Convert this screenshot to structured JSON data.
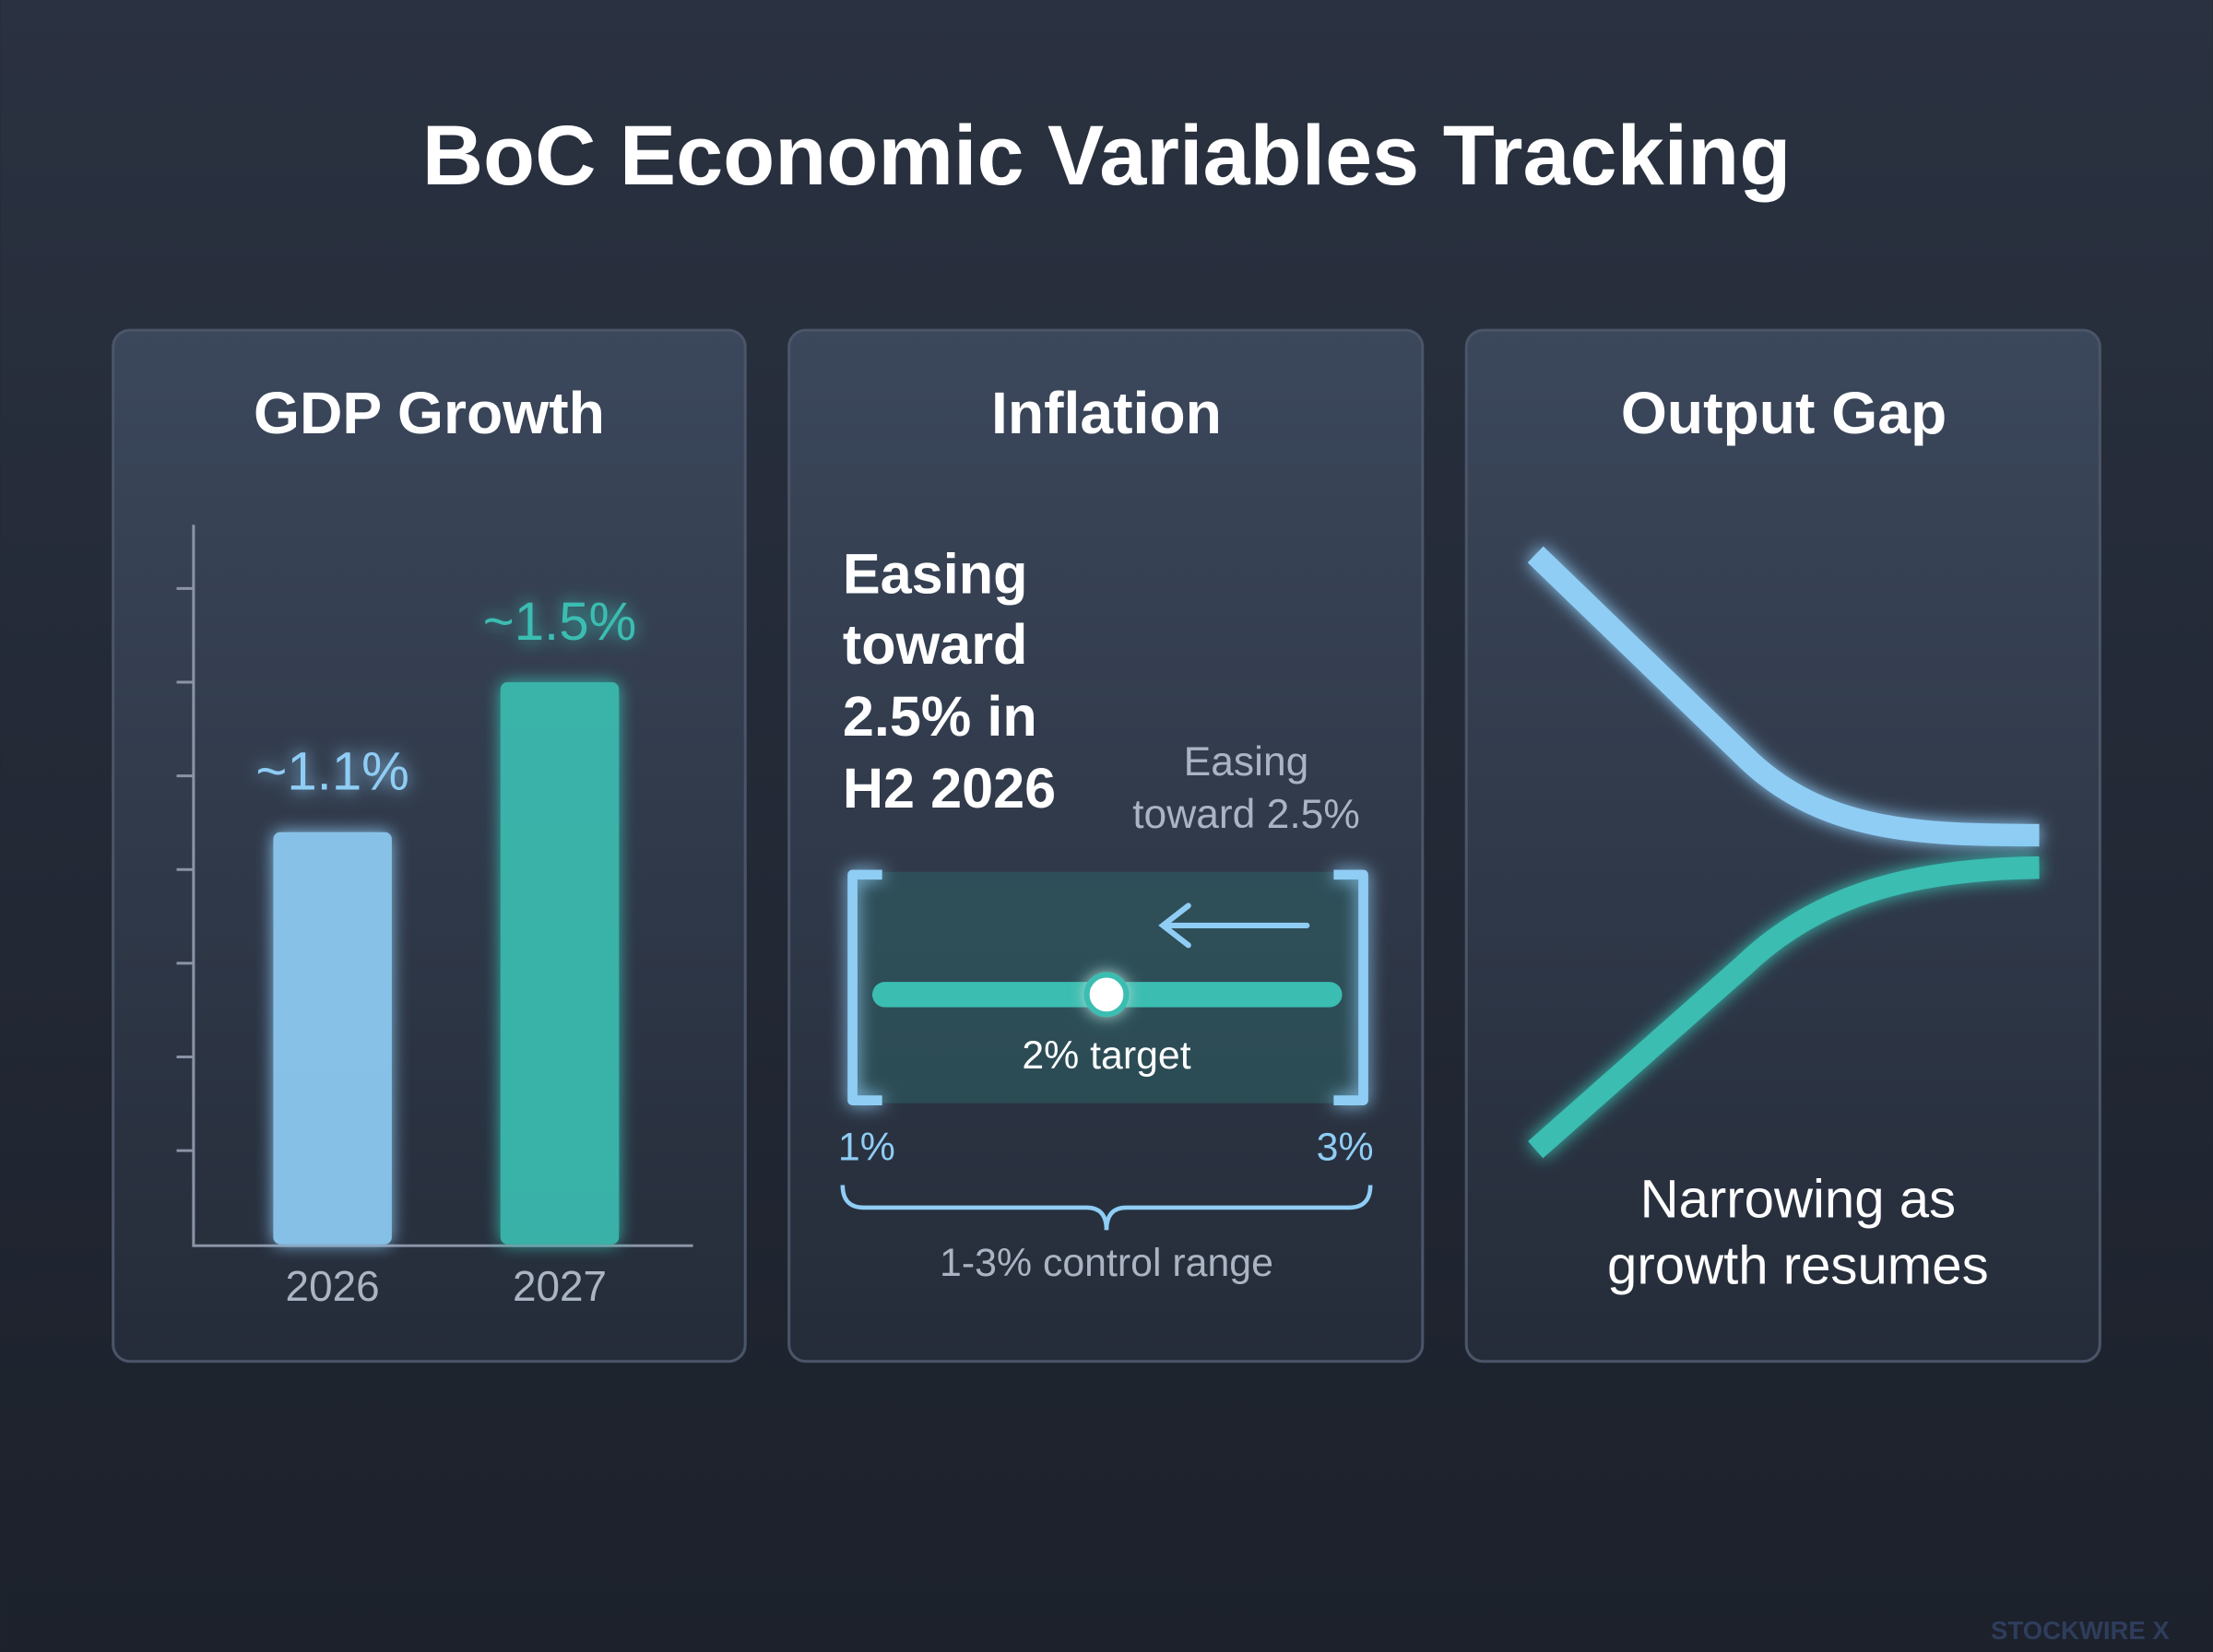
{
  "title": "BoC Economic Variables Tracking",
  "chart_data": {
    "type": "bar",
    "title": "GDP Growth",
    "categories": [
      "2026",
      "2027"
    ],
    "values": [
      1.1,
      1.5
    ],
    "value_labels": [
      "~1.1%",
      "~1.5%"
    ],
    "colors": [
      "#8fcdf5",
      "#3bbdb1"
    ],
    "ylim": [
      0,
      1.92
    ],
    "yticks": [
      0.25,
      0.5,
      0.75,
      1,
      1.25,
      1.5,
      1.75
    ]
  },
  "inflation": {
    "title": "Inflation",
    "headline": [
      "Easing",
      "toward",
      "2.5% in",
      "H2 2026"
    ],
    "note": [
      "Easing",
      "toward 2.5%"
    ],
    "target_label": "2% target",
    "range_low": "1%",
    "range_high": "3%",
    "range_caption": "1-3% control range"
  },
  "output_gap": {
    "title": "Output Gap",
    "caption": [
      "Narrowing as",
      "growth resumes"
    ]
  },
  "watermark": "STOCKWIRE X"
}
